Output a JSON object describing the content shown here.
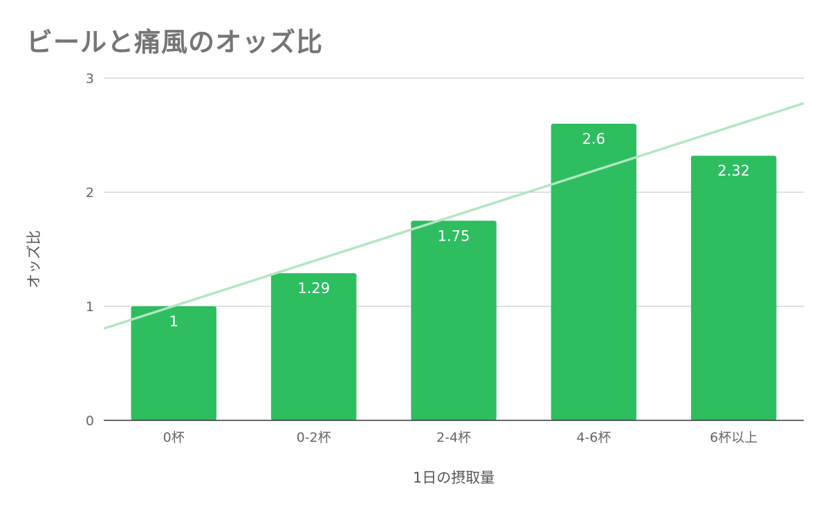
{
  "chart_data": {
    "type": "bar",
    "title": "ビールと痛風のオッズ比",
    "xlabel": "1日の摂取量",
    "ylabel": "オッズ比",
    "categories": [
      "0杯",
      "0-2杯",
      "2-4杯",
      "4-6杯",
      "6杯以上"
    ],
    "values": [
      1,
      1.29,
      1.75,
      2.6,
      2.32
    ],
    "data_labels": [
      "1",
      "1.29",
      "1.75",
      "2.6",
      "2.32"
    ],
    "ylim": [
      0,
      3
    ],
    "yticks": [
      0,
      1,
      2,
      3
    ],
    "grid": true,
    "trendline": {
      "type": "linear"
    },
    "colors": {
      "bar": "#2EBE60",
      "trendline": "#B3E6C1",
      "gridline": "#CCCCCC",
      "axis": "#333333",
      "title": "#757575"
    }
  }
}
